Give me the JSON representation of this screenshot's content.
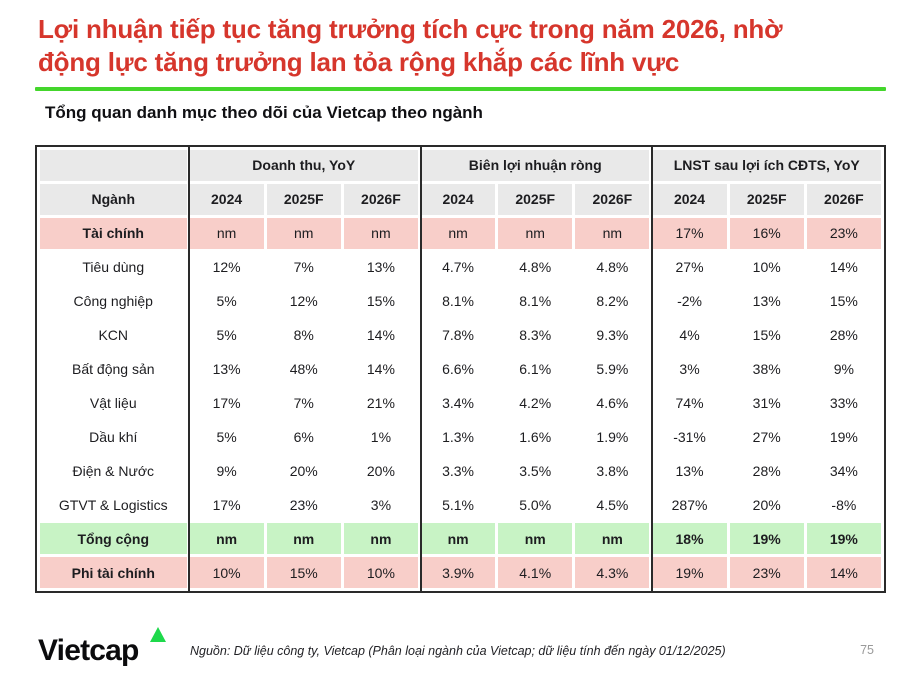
{
  "title": {
    "line1": "Lợi nhuận tiếp tục tăng trưởng tích cực trong năm 2026, nhờ",
    "line2": "động lực tăng trưởng lan tỏa rộng khắp các lĩnh vực"
  },
  "subtitle": "Tổng quan danh mục theo dõi của Vietcap theo ngành",
  "colors": {
    "title_red": "#d6362c",
    "accent_green": "#44d62c",
    "header_gray": "#e9e9e9",
    "row_pink": "#f8cec9",
    "row_green": "#c8f3c5",
    "border_black": "#2a2a2a"
  },
  "table": {
    "row_header_label": "Ngành",
    "groups": [
      {
        "label": "Doanh thu, YoY"
      },
      {
        "label": "Biên lợi nhuận ròng"
      },
      {
        "label": "LNST sau lợi ích CĐTS, YoY"
      }
    ],
    "year_cols": [
      "2024",
      "2025F",
      "2026F"
    ],
    "rows": [
      {
        "label": "Tài chính",
        "style": "pink",
        "bold_label": true,
        "bold_values": false,
        "values": [
          "nm",
          "nm",
          "nm",
          "nm",
          "nm",
          "nm",
          "17%",
          "16%",
          "23%"
        ]
      },
      {
        "label": "Tiêu dùng",
        "style": "white",
        "bold_label": false,
        "bold_values": false,
        "values": [
          "12%",
          "7%",
          "13%",
          "4.7%",
          "4.8%",
          "4.8%",
          "27%",
          "10%",
          "14%"
        ]
      },
      {
        "label": "Công nghiệp",
        "style": "white",
        "bold_label": false,
        "bold_values": false,
        "values": [
          "5%",
          "12%",
          "15%",
          "8.1%",
          "8.1%",
          "8.2%",
          "-2%",
          "13%",
          "15%"
        ]
      },
      {
        "label": "KCN",
        "style": "white",
        "bold_label": false,
        "bold_values": false,
        "values": [
          "5%",
          "8%",
          "14%",
          "7.8%",
          "8.3%",
          "9.3%",
          "4%",
          "15%",
          "28%"
        ]
      },
      {
        "label": "Bất động sản",
        "style": "white",
        "bold_label": false,
        "bold_values": false,
        "values": [
          "13%",
          "48%",
          "14%",
          "6.6%",
          "6.1%",
          "5.9%",
          "3%",
          "38%",
          "9%"
        ]
      },
      {
        "label": "Vật liệu",
        "style": "white",
        "bold_label": false,
        "bold_values": false,
        "values": [
          "17%",
          "7%",
          "21%",
          "3.4%",
          "4.2%",
          "4.6%",
          "74%",
          "31%",
          "33%"
        ]
      },
      {
        "label": "Dầu khí",
        "style": "white",
        "bold_label": false,
        "bold_values": false,
        "values": [
          "5%",
          "6%",
          "1%",
          "1.3%",
          "1.6%",
          "1.9%",
          "-31%",
          "27%",
          "19%"
        ]
      },
      {
        "label": "Điện & Nước",
        "style": "white",
        "bold_label": false,
        "bold_values": false,
        "values": [
          "9%",
          "20%",
          "20%",
          "3.3%",
          "3.5%",
          "3.8%",
          "13%",
          "28%",
          "34%"
        ]
      },
      {
        "label": "GTVT & Logistics",
        "style": "white",
        "bold_label": false,
        "bold_values": false,
        "values": [
          "17%",
          "23%",
          "3%",
          "5.1%",
          "5.0%",
          "4.5%",
          "287%",
          "20%",
          "-8%"
        ]
      },
      {
        "label": "Tổng cộng",
        "style": "green",
        "bold_label": true,
        "bold_values": true,
        "values": [
          "nm",
          "nm",
          "nm",
          "nm",
          "nm",
          "nm",
          "18%",
          "19%",
          "19%"
        ]
      },
      {
        "label": "Phi tài chính",
        "style": "pink",
        "bold_label": true,
        "bold_values": false,
        "values": [
          "10%",
          "15%",
          "10%",
          "3.9%",
          "4.1%",
          "4.3%",
          "19%",
          "23%",
          "14%"
        ]
      }
    ]
  },
  "footer": {
    "logo_text": "Vietcap",
    "source": "Nguồn: Dữ liệu công ty, Vietcap (Phân loại ngành của Vietcap; dữ liệu tính đến ngày 01/12/2025)",
    "page_number": "75"
  }
}
